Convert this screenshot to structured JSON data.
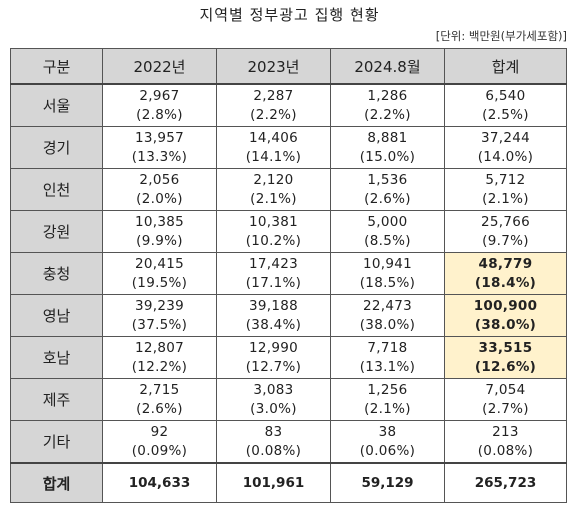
{
  "title": "지역별 정부광고 집행 현황",
  "unit_note": "[단위: 백만원(부가세포함)]",
  "headers": [
    "구분",
    "2022년",
    "2023년",
    "2024.8월",
    "합계"
  ],
  "rows": [
    {
      "region": "서울",
      "cells": [
        [
          "2,967",
          "(2.8%)"
        ],
        [
          "2,287",
          "(2.2%)"
        ],
        [
          "1,286",
          "(2.2%)"
        ],
        [
          "6,540",
          "(2.5%)"
        ]
      ],
      "highlight_total": false
    },
    {
      "region": "경기",
      "cells": [
        [
          "13,957",
          "(13.3%)"
        ],
        [
          "14,406",
          "(14.1%)"
        ],
        [
          "8,881",
          "(15.0%)"
        ],
        [
          "37,244",
          "(14.0%)"
        ]
      ],
      "highlight_total": false
    },
    {
      "region": "인천",
      "cells": [
        [
          "2,056",
          "(2.0%)"
        ],
        [
          "2,120",
          "(2.1%)"
        ],
        [
          "1,536",
          "(2.6%)"
        ],
        [
          "5,712",
          "(2.1%)"
        ]
      ],
      "highlight_total": false
    },
    {
      "region": "강원",
      "cells": [
        [
          "10,385",
          "(9.9%)"
        ],
        [
          "10,381",
          "(10.2%)"
        ],
        [
          "5,000",
          "(8.5%)"
        ],
        [
          "25,766",
          "(9.7%)"
        ]
      ],
      "highlight_total": false
    },
    {
      "region": "충청",
      "cells": [
        [
          "20,415",
          "(19.5%)"
        ],
        [
          "17,423",
          "(17.1%)"
        ],
        [
          "10,941",
          "(18.5%)"
        ],
        [
          "48,779",
          "(18.4%)"
        ]
      ],
      "highlight_total": true
    },
    {
      "region": "영남",
      "cells": [
        [
          "39,239",
          "(37.5%)"
        ],
        [
          "39,188",
          "(38.4%)"
        ],
        [
          "22,473",
          "(38.0%)"
        ],
        [
          "100,900",
          "(38.0%)"
        ]
      ],
      "highlight_total": true
    },
    {
      "region": "호남",
      "cells": [
        [
          "12,807",
          "(12.2%)"
        ],
        [
          "12,990",
          "(12.7%)"
        ],
        [
          "7,718",
          "(13.1%)"
        ],
        [
          "33,515",
          "(12.6%)"
        ]
      ],
      "highlight_total": true
    },
    {
      "region": "제주",
      "cells": [
        [
          "2,715",
          "(2.6%)"
        ],
        [
          "3,083",
          "(3.0%)"
        ],
        [
          "1,256",
          "(2.1%)"
        ],
        [
          "7,054",
          "(2.7%)"
        ]
      ],
      "highlight_total": false
    },
    {
      "region": "기타",
      "cells": [
        [
          "92",
          "(0.09%)"
        ],
        [
          "83",
          "(0.08%)"
        ],
        [
          "38",
          "(0.06%)"
        ],
        [
          "213",
          "(0.08%)"
        ]
      ],
      "highlight_total": false
    }
  ],
  "total_row": {
    "region": "합계",
    "cells": [
      "104,633",
      "101,961",
      "59,129",
      "265,723"
    ]
  },
  "colors": {
    "header_bg": "#d6d6d6",
    "highlight_bg": "#fff2cc"
  }
}
